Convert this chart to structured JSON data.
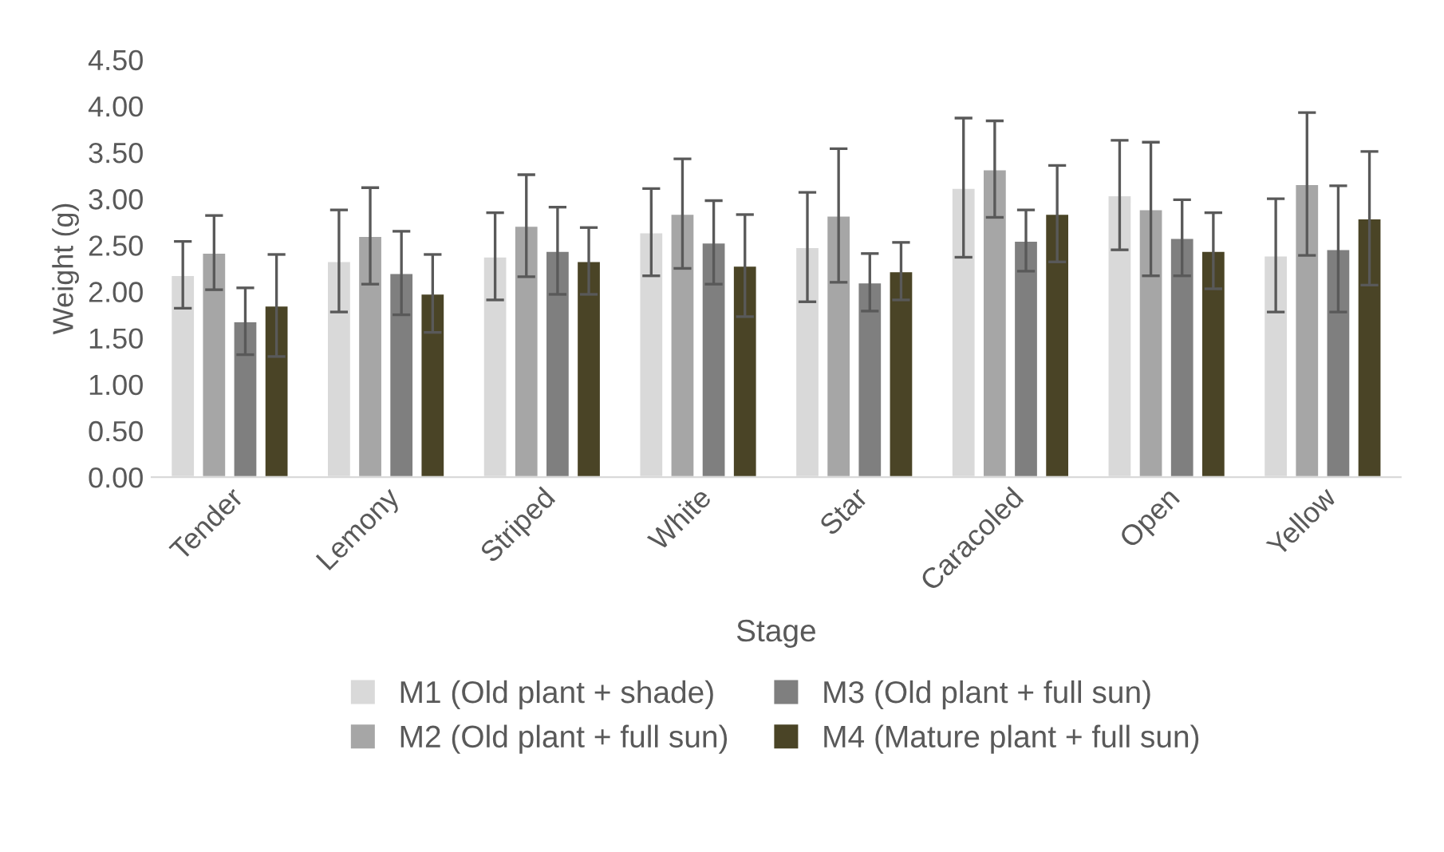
{
  "chart_data": {
    "type": "bar",
    "xlabel": "Stage",
    "ylabel": "Weight (g)",
    "categories": [
      "Tender",
      "Lemony",
      "Striped",
      "White",
      "Star",
      "Caracoled",
      "Open",
      "Yellow"
    ],
    "series": [
      {
        "name": "M1 (Old plant + shade)",
        "color": "#d9d9d9",
        "values": [
          2.18,
          2.33,
          2.38,
          2.64,
          2.48,
          3.12,
          3.04,
          2.39
        ],
        "errors": [
          0.36,
          0.55,
          0.47,
          0.47,
          0.59,
          0.75,
          0.59,
          0.61
        ]
      },
      {
        "name": "M2 (Old plant + full sun)",
        "color": "#a6a6a6",
        "values": [
          2.42,
          2.6,
          2.71,
          2.84,
          2.82,
          3.32,
          2.89,
          3.16
        ],
        "errors": [
          0.4,
          0.52,
          0.55,
          0.59,
          0.72,
          0.52,
          0.72,
          0.77
        ]
      },
      {
        "name": "M3 (Old plant + full sun)",
        "color": "#7f7f7f",
        "values": [
          1.68,
          2.2,
          2.44,
          2.53,
          2.1,
          2.55,
          2.58,
          2.46
        ],
        "errors": [
          0.36,
          0.45,
          0.47,
          0.45,
          0.31,
          0.33,
          0.41,
          0.68
        ]
      },
      {
        "name": "M4 (Mature plant + full sun)",
        "color": "#4a4426",
        "values": [
          1.85,
          1.98,
          2.33,
          2.28,
          2.22,
          2.84,
          2.44,
          2.79
        ],
        "errors": [
          0.55,
          0.42,
          0.36,
          0.55,
          0.31,
          0.52,
          0.41,
          0.72
        ]
      }
    ],
    "ylim": [
      0,
      4.5
    ],
    "yticks": [
      {
        "value": 0,
        "label": "0.00"
      },
      {
        "value": 0.5,
        "label": "0.50"
      },
      {
        "value": 1,
        "label": "1.00"
      },
      {
        "value": 1.5,
        "label": "1.50"
      },
      {
        "value": 2,
        "label": "2.00"
      },
      {
        "value": 2.5,
        "label": "2.50"
      },
      {
        "value": 3,
        "label": "3.00"
      },
      {
        "value": 3.5,
        "label": "3.50"
      },
      {
        "value": 4,
        "label": "4.00"
      },
      {
        "value": 4.5,
        "label": "4.50"
      }
    ],
    "grid": false,
    "legend": "bottom"
  }
}
